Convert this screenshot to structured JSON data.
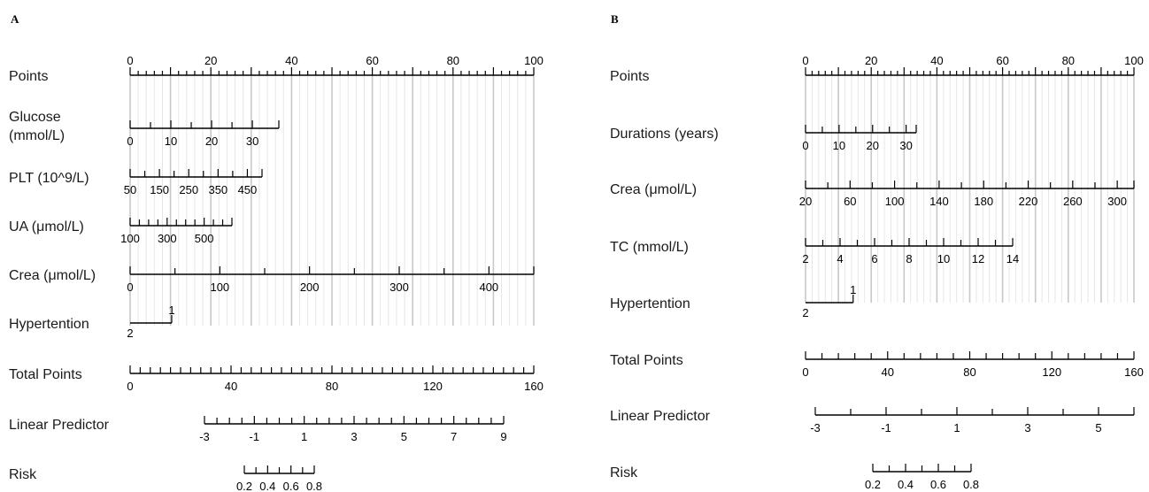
{
  "chart_data": [
    {
      "type": "nomogram",
      "panel_label": "A",
      "rows": [
        {
          "label": "Points",
          "kind": "points",
          "ticks": [
            0,
            10,
            20,
            30,
            40,
            50,
            60,
            70,
            80,
            90,
            100
          ],
          "labels": [
            "0",
            "20",
            "40",
            "60",
            "80",
            "100"
          ],
          "minor_step": 2
        },
        {
          "label": "Glucose\n(mmol/L)",
          "kind": "scale",
          "range": [
            0,
            36.5
          ],
          "ticks": [
            0,
            5,
            10,
            15,
            20,
            25,
            30,
            36.5
          ],
          "labels": [
            "0",
            "10",
            "20",
            "30"
          ]
        },
        {
          "label": "PLT (10^9/L)",
          "kind": "scale",
          "range": [
            50,
            500
          ],
          "ticks": [
            50,
            100,
            150,
            200,
            250,
            300,
            350,
            400,
            450,
            500
          ],
          "labels": [
            "50",
            "150",
            "250",
            "350",
            "450"
          ]
        },
        {
          "label": "UA (μmol/L)",
          "kind": "scale",
          "range": [
            100,
            650
          ],
          "ticks": [
            100,
            150,
            200,
            250,
            300,
            350,
            400,
            450,
            500,
            550,
            600,
            650
          ],
          "labels": [
            "100",
            "300",
            "500"
          ]
        },
        {
          "label": "Crea (μmol/L)",
          "kind": "scale",
          "range": [
            0,
            450
          ],
          "ticks": [
            0,
            50,
            100,
            150,
            200,
            250,
            300,
            350,
            400,
            450
          ],
          "labels": [
            "0",
            "100",
            "200",
            "300",
            "400"
          ]
        },
        {
          "label": "Hypertention",
          "kind": "categorical",
          "levels": [
            {
              "label": "2",
              "points": 0
            },
            {
              "label": "1",
              "points": 10.3
            }
          ]
        },
        {
          "label": "Total Points",
          "kind": "total",
          "range": [
            0,
            160
          ],
          "ticks": [
            0,
            4,
            8,
            12,
            16,
            20,
            24,
            28,
            32,
            36,
            40,
            44,
            48,
            52,
            56,
            60,
            64,
            68,
            72,
            76,
            80,
            84,
            88,
            92,
            96,
            100,
            104,
            108,
            112,
            116,
            120,
            124,
            128,
            132,
            136,
            140,
            144,
            148,
            152,
            156,
            160
          ],
          "labels": [
            "0",
            "40",
            "80",
            "120",
            "160"
          ]
        },
        {
          "label": "Linear Predictor",
          "kind": "scale",
          "range": [
            -3,
            9
          ],
          "ticks": [
            -3,
            -2.5,
            -2,
            -1.5,
            -1,
            -0.5,
            0,
            0.5,
            1,
            1.5,
            2,
            2.5,
            3,
            3.5,
            4,
            4.5,
            5,
            5.5,
            6,
            6.5,
            7,
            7.5,
            8,
            8.5,
            9
          ],
          "labels": [
            "-3",
            "-1",
            "1",
            "3",
            "5",
            "7",
            "9"
          ]
        },
        {
          "label": "Risk",
          "kind": "scale",
          "range": [
            0.2,
            0.8
          ],
          "ticks": [
            0.2,
            0.3,
            0.4,
            0.5,
            0.6,
            0.7,
            0.8
          ],
          "labels": [
            "0.2",
            "0.4",
            "0.6",
            "0.8"
          ],
          "label_text": "0.2 0.40.6 0.8"
        }
      ]
    },
    {
      "type": "nomogram",
      "panel_label": "B",
      "rows": [
        {
          "label": "Points",
          "kind": "points",
          "ticks": [
            0,
            10,
            20,
            30,
            40,
            50,
            60,
            70,
            80,
            90,
            100
          ],
          "labels": [
            "0",
            "20",
            "40",
            "60",
            "80",
            "100"
          ],
          "minor_step": 2
        },
        {
          "label": "Durations (years)",
          "kind": "scale",
          "range": [
            0,
            33
          ],
          "ticks": [
            0,
            5,
            10,
            15,
            20,
            25,
            30,
            33
          ],
          "labels": [
            "0",
            "10",
            "20",
            "30"
          ]
        },
        {
          "label": "Crea (μmol/L)",
          "kind": "scale",
          "range": [
            20,
            315
          ],
          "ticks": [
            20,
            40,
            60,
            80,
            100,
            120,
            140,
            160,
            180,
            200,
            220,
            240,
            260,
            280,
            300,
            315
          ],
          "labels": [
            "20",
            "60",
            "100",
            "140",
            "180",
            "220",
            "260",
            "300"
          ]
        },
        {
          "label": "TC (mmol/L)",
          "kind": "scale",
          "range": [
            2,
            14
          ],
          "ticks": [
            2,
            3,
            4,
            5,
            6,
            7,
            8,
            9,
            10,
            11,
            12,
            13,
            14
          ],
          "labels": [
            "2",
            "4",
            "6",
            "8",
            "10",
            "12",
            "14"
          ]
        },
        {
          "label": "Hypertention",
          "kind": "categorical",
          "levels": [
            {
              "label": "2",
              "points": 0
            },
            {
              "label": "1",
              "points": 14.5
            }
          ]
        },
        {
          "label": "Total Points",
          "kind": "total",
          "range": [
            0,
            160
          ],
          "ticks": [
            0,
            8,
            16,
            24,
            32,
            40,
            48,
            56,
            64,
            72,
            80,
            88,
            96,
            104,
            112,
            120,
            128,
            136,
            144,
            152,
            160
          ],
          "labels": [
            "0",
            "40",
            "80",
            "120",
            "160"
          ]
        },
        {
          "label": "Linear Predictor",
          "kind": "scale",
          "range": [
            -3,
            6
          ],
          "ticks": [
            -3,
            -2,
            -1,
            0,
            1,
            2,
            3,
            4,
            5,
            6
          ],
          "labels": [
            "-3",
            "-1",
            "1",
            "3",
            "5"
          ]
        },
        {
          "label": "Risk",
          "kind": "scale",
          "range": [
            0.2,
            0.8
          ],
          "ticks": [
            0.2,
            0.3,
            0.4,
            0.5,
            0.6,
            0.7,
            0.8
          ],
          "labels": [
            "0.2",
            "0.4",
            "0.6",
            "0.8"
          ]
        }
      ]
    }
  ]
}
